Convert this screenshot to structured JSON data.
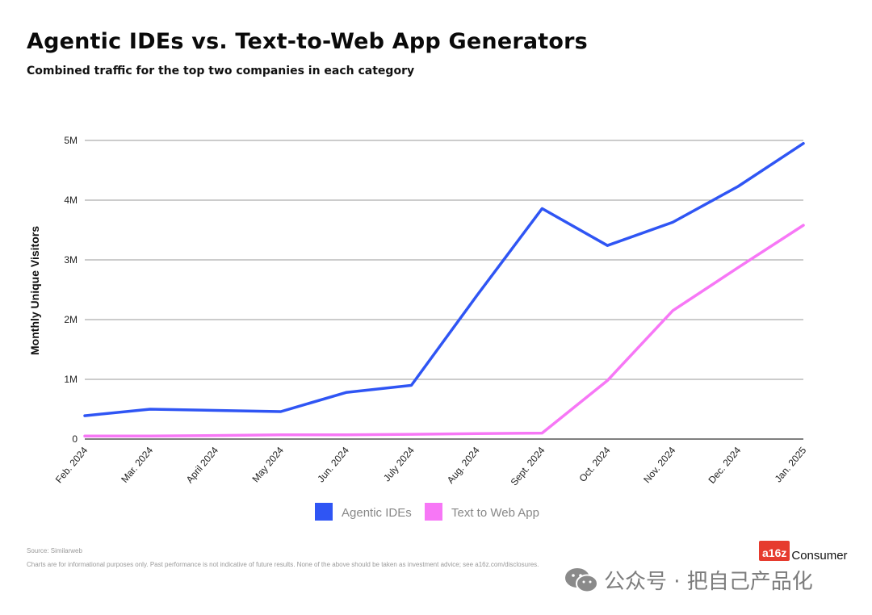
{
  "header": {
    "title": "Agentic IDEs vs. Text-to-Web App Generators",
    "subtitle": "Combined traffic for the top two companies in each category"
  },
  "footer": {
    "source": "Source: Similarweb",
    "disclaimer": "Charts are for informational purposes only. Past performance is not indicative of future results. None of the above should be taken as investment advice; see a16z.com/disclosures.",
    "brand_logo": "a16z",
    "brand_text": "Consumer"
  },
  "watermark": {
    "text": "公众号 · 把自己产品化",
    "icon": "wechat-icon"
  },
  "chart_data": {
    "type": "line",
    "title": "Agentic IDEs vs. Text-to-Web App Generators",
    "subtitle": "Combined traffic for the top two companies in each category",
    "ylabel": "Monthly Unique Visitors",
    "xlabel": "",
    "ylim": [
      0,
      5000000
    ],
    "yticks": [
      0,
      1000000,
      2000000,
      3000000,
      4000000,
      5000000
    ],
    "ytick_labels": [
      "0",
      "1M",
      "2M",
      "3M",
      "4M",
      "5M"
    ],
    "grid": "horizontal",
    "legend_position": "bottom-center",
    "categories": [
      "Feb. 2024",
      "Mar. 2024",
      "April 2024",
      "May 2024",
      "Jun. 2024",
      "July 2024",
      "Aug. 2024",
      "Sept. 2024",
      "Oct. 2024",
      "Nov. 2024",
      "Dec. 2024",
      "Jan. 2025"
    ],
    "series": [
      {
        "name": "Agentic IDEs",
        "color": "#2f55f4",
        "values": [
          390000,
          500000,
          480000,
          460000,
          780000,
          900000,
          2400000,
          3860000,
          3240000,
          3630000,
          4230000,
          4950000
        ]
      },
      {
        "name": "Text to Web App",
        "color": "#f777f6",
        "values": [
          50000,
          50000,
          60000,
          70000,
          70000,
          80000,
          90000,
          100000,
          980000,
          2150000,
          2870000,
          3580000
        ]
      }
    ]
  }
}
